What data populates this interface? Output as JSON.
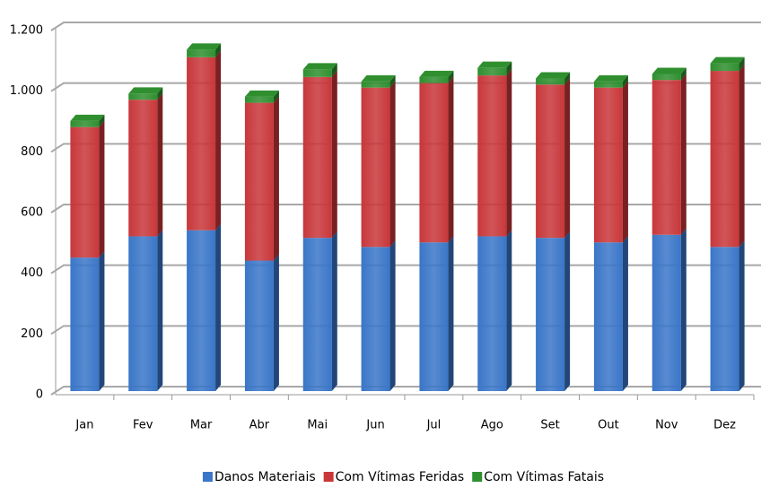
{
  "chart_data": {
    "type": "bar",
    "stacked": true,
    "categories": [
      "Jan",
      "Fev",
      "Mar",
      "Abr",
      "Mai",
      "Jun",
      "Jul",
      "Ago",
      "Set",
      "Out",
      "Nov",
      "Dez"
    ],
    "series": [
      {
        "name": "Danos Materiais",
        "color": "#3a76c8",
        "values": [
          440,
          510,
          530,
          430,
          505,
          475,
          490,
          510,
          505,
          490,
          515,
          475
        ]
      },
      {
        "name": "Com Vítimas Feridas",
        "color": "#c8373a",
        "values": [
          430,
          450,
          570,
          520,
          530,
          525,
          525,
          530,
          505,
          510,
          510,
          580
        ]
      },
      {
        "name": "Com Vítimas Fatais",
        "color": "#2f8f2f",
        "values": [
          20,
          20,
          25,
          20,
          25,
          20,
          20,
          25,
          20,
          20,
          20,
          25
        ]
      }
    ],
    "ylim": [
      0,
      1200
    ],
    "yticks": [
      0,
      200,
      400,
      600,
      800,
      {
        "value": 1000,
        "label": "1.000"
      },
      {
        "value": 1200,
        "label": "1.200"
      }
    ],
    "grid": true,
    "legend": "bottom"
  }
}
